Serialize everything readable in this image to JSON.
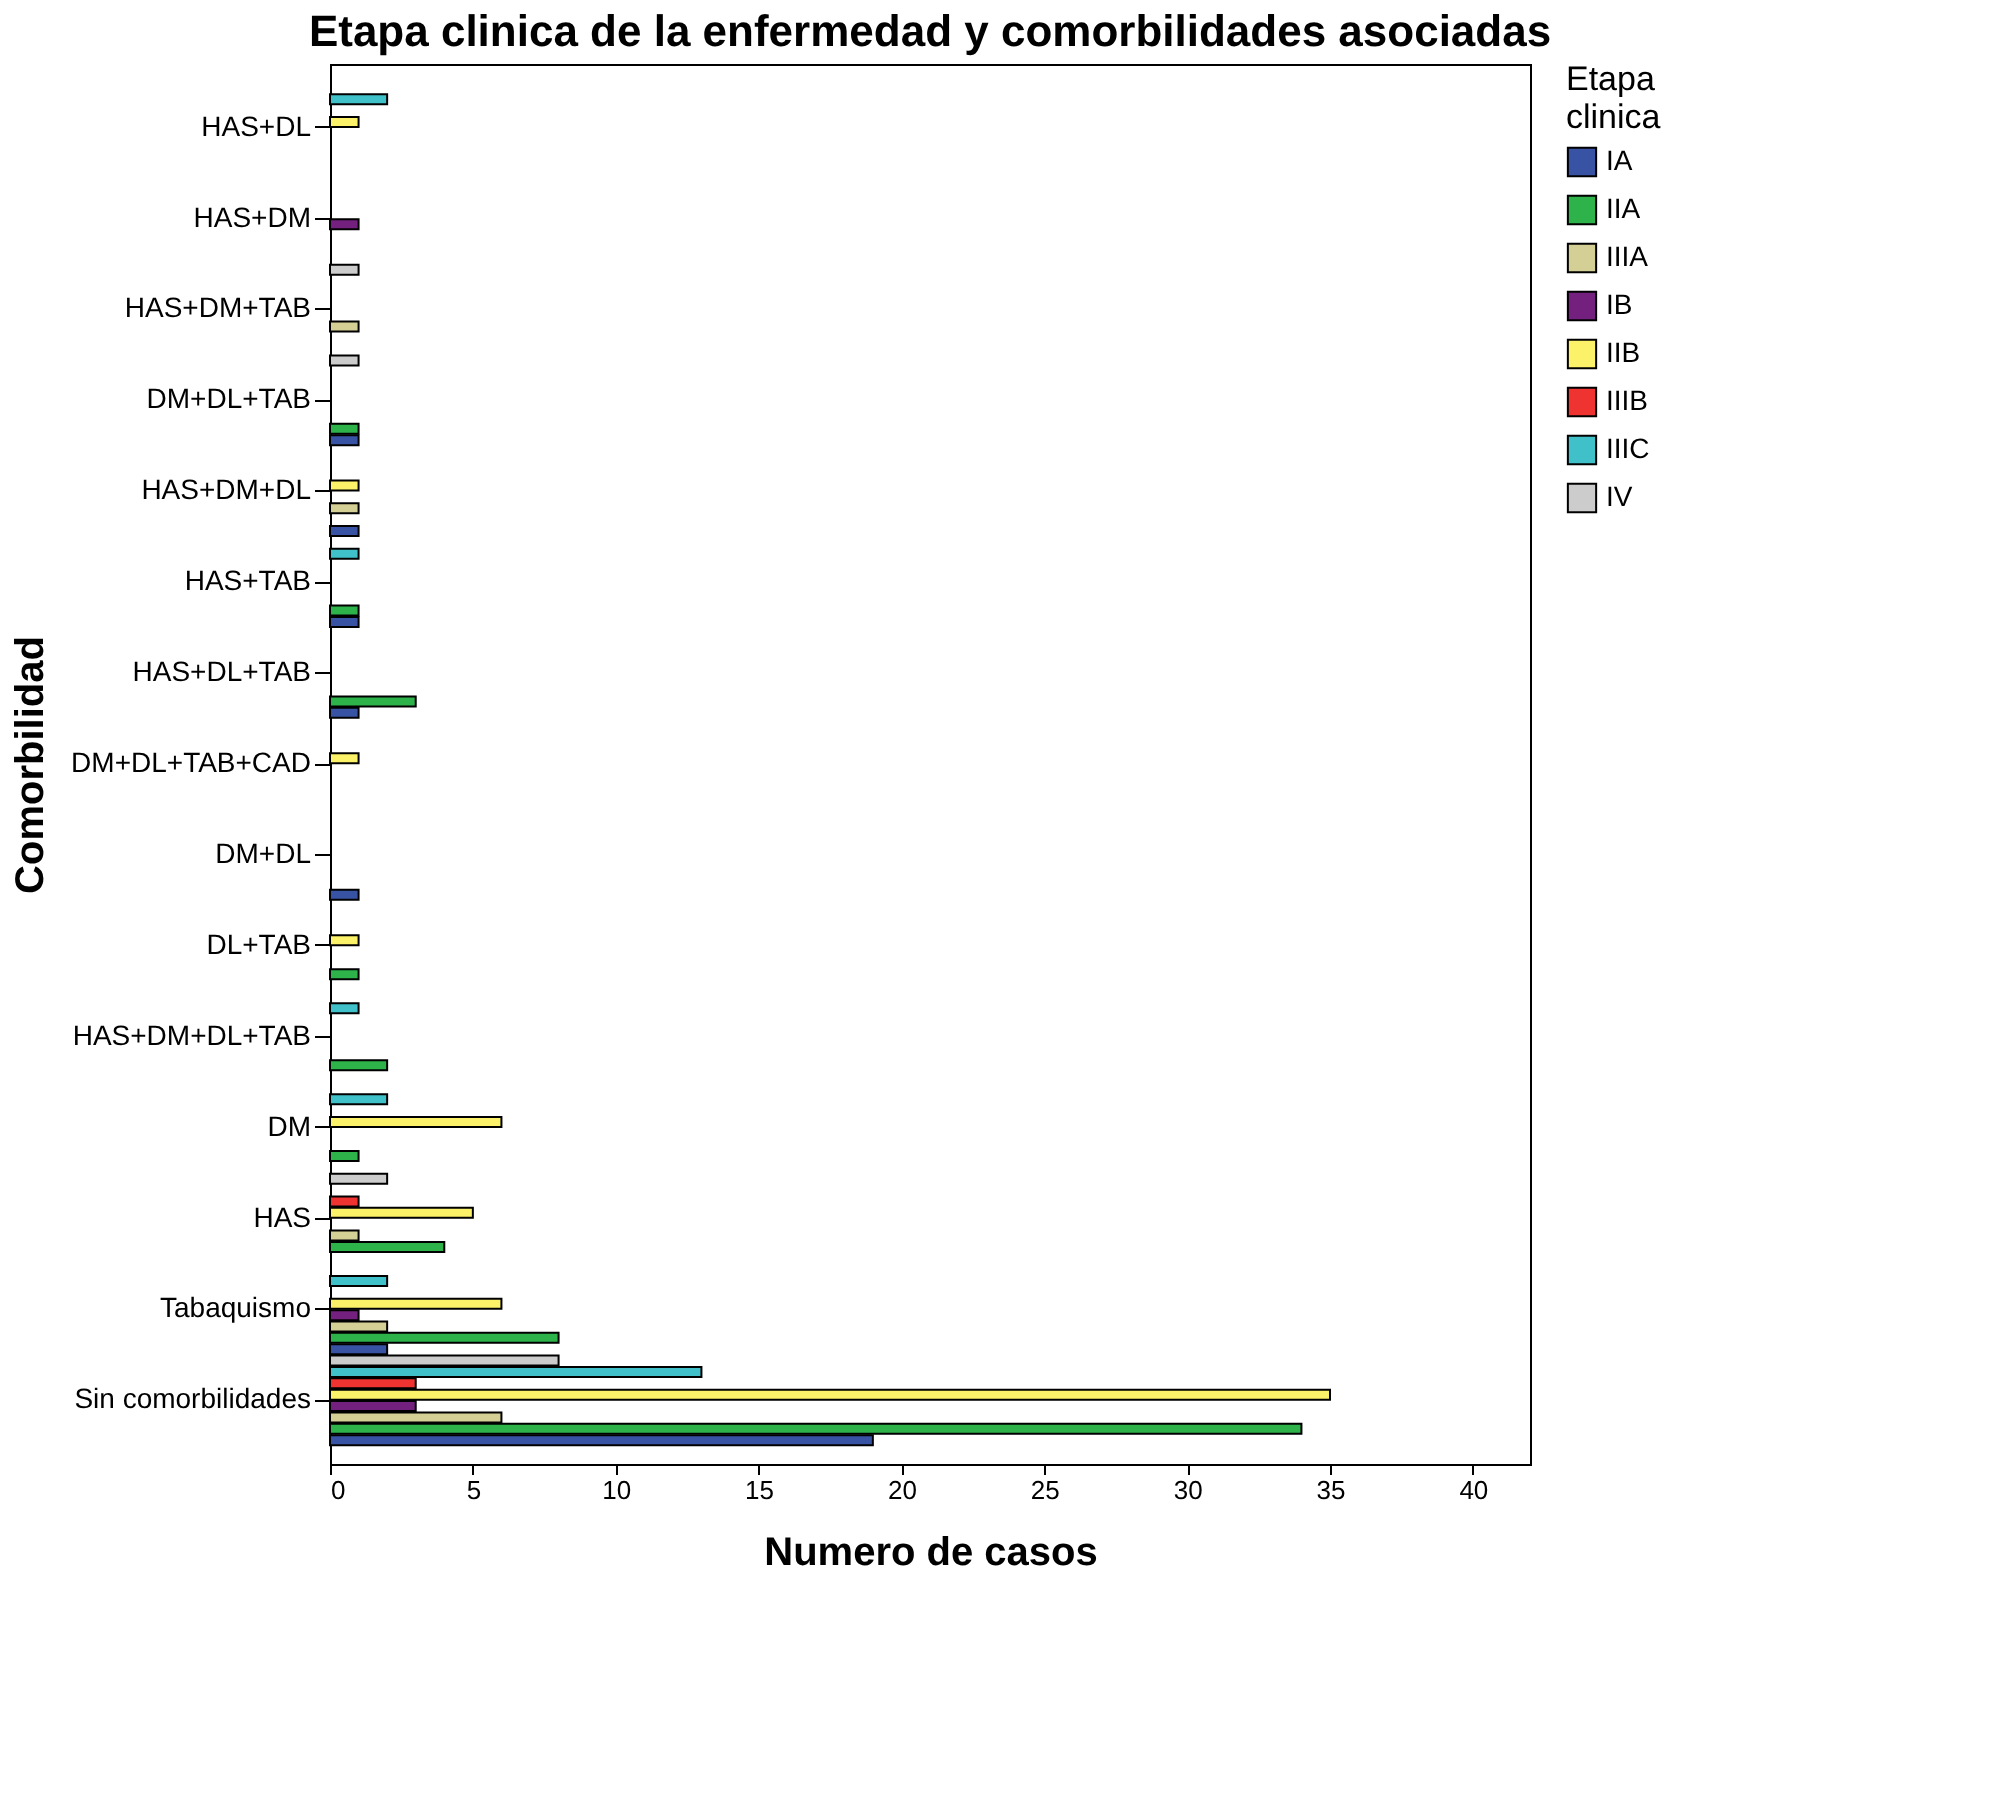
{
  "chart_data": {
    "type": "bar",
    "orientation": "horizontal",
    "title": "Etapa clinica de la enfermedad y comorbilidades asociadas",
    "xlabel": "Numero de casos",
    "ylabel": "Comorbilidad",
    "legend_title": "Etapa clinica",
    "legend": "right",
    "categories": [
      "HAS+DL",
      "HAS+DM",
      "HAS+DM+TAB",
      "DM+DL+TAB",
      "HAS+DM+DL",
      "HAS+TAB",
      "HAS+DL+TAB",
      "DM+DL+TAB+CAD",
      "DM+DL",
      "DL+TAB",
      "HAS+DM+DL+TAB",
      "DM",
      "HAS",
      "Tabaquismo",
      "Sin comorbilidades"
    ],
    "series": [
      {
        "name": "IA",
        "color": "#3953a4",
        "values": [
          null,
          null,
          null,
          1,
          1,
          1,
          1,
          null,
          1,
          null,
          null,
          null,
          null,
          2,
          19
        ]
      },
      {
        "name": "IIA",
        "color": "#2db34a",
        "values": [
          null,
          null,
          null,
          1,
          null,
          1,
          3,
          null,
          null,
          1,
          2,
          1,
          4,
          8,
          34
        ]
      },
      {
        "name": "IIIA",
        "color": "#d4cf94",
        "values": [
          null,
          null,
          1,
          null,
          1,
          null,
          null,
          null,
          null,
          null,
          null,
          null,
          1,
          2,
          6
        ]
      },
      {
        "name": "IB",
        "color": "#73207f",
        "values": [
          null,
          1,
          null,
          null,
          null,
          null,
          null,
          null,
          null,
          null,
          null,
          null,
          null,
          1,
          3
        ]
      },
      {
        "name": "IIB",
        "color": "#fbf26a",
        "values": [
          1,
          null,
          null,
          null,
          1,
          null,
          null,
          1,
          null,
          1,
          null,
          6,
          5,
          6,
          35
        ]
      },
      {
        "name": "IIIB",
        "color": "#ee3331",
        "values": [
          null,
          null,
          null,
          null,
          null,
          null,
          null,
          null,
          null,
          null,
          null,
          null,
          1,
          null,
          3
        ]
      },
      {
        "name": "IIIC",
        "color": "#40c0c8",
        "values": [
          2,
          null,
          null,
          null,
          null,
          1,
          null,
          null,
          null,
          null,
          1,
          2,
          null,
          2,
          13
        ]
      },
      {
        "name": "IV",
        "color": "#cccccc",
        "values": [
          null,
          null,
          1,
          1,
          null,
          null,
          null,
          null,
          null,
          null,
          null,
          null,
          2,
          null,
          8
        ]
      }
    ],
    "xlim": [
      0,
      42
    ],
    "xticks": [
      0,
      5,
      10,
      15,
      20,
      25,
      30,
      35,
      40
    ],
    "grid": false
  }
}
